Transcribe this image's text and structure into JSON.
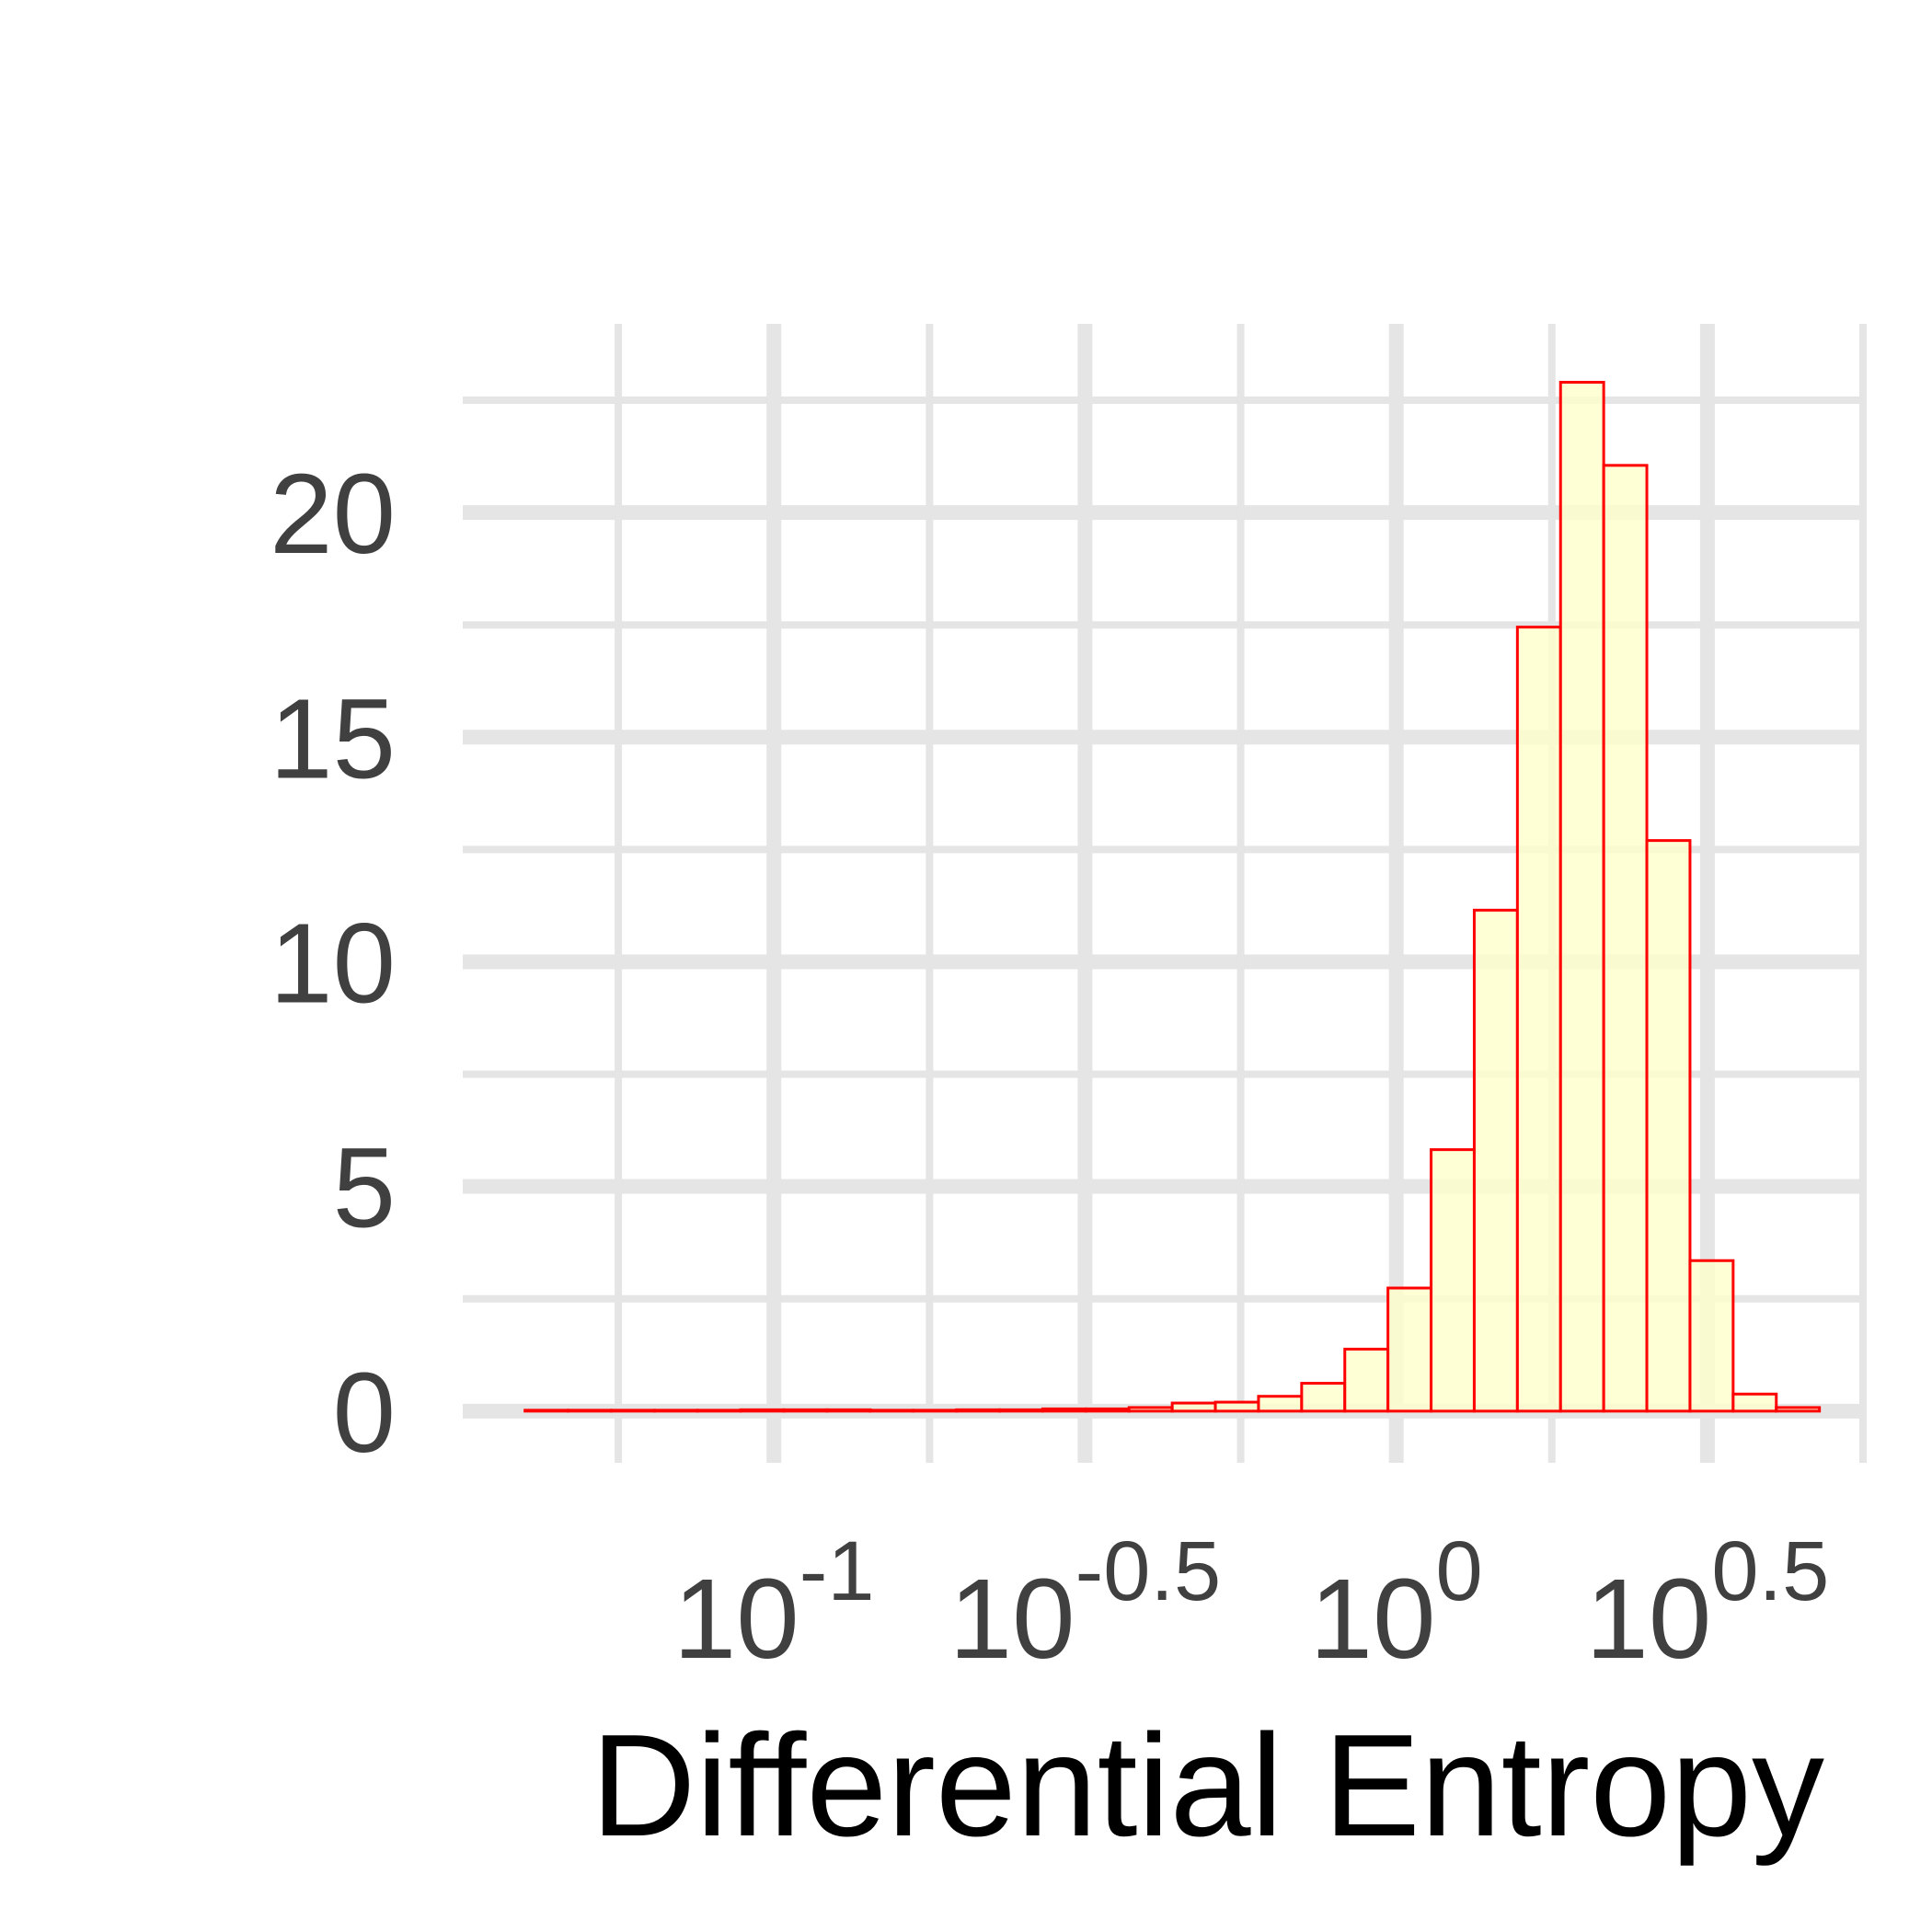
{
  "chart_data": {
    "type": "bar",
    "xlabel": "Differential Entropy",
    "ylabel": "",
    "x_scale": "log10",
    "xlim_log10": [
      -1.5,
      0.75
    ],
    "ylim": [
      -1.15,
      24.2
    ],
    "grid": true,
    "y_ticks": [
      "0",
      "5",
      "10",
      "15",
      "20"
    ],
    "x_ticks": [
      {
        "base": "10",
        "exponent": "-1"
      },
      {
        "base": "10",
        "exponent": "-0.5"
      },
      {
        "base": "10",
        "exponent": "0"
      },
      {
        "base": "10",
        "exponent": "0.5"
      }
    ],
    "bins_log10_range": [
      -1.4,
      0.68
    ],
    "bin_count": 30,
    "values": [
      0.02,
      0.02,
      0.02,
      0.02,
      0.02,
      0.03,
      0.03,
      0.03,
      0.02,
      0.02,
      0.03,
      0.03,
      0.05,
      0.05,
      0.08,
      0.18,
      0.2,
      0.33,
      0.62,
      1.38,
      2.74,
      5.82,
      11.15,
      17.45,
      22.9,
      21.05,
      12.7,
      3.35,
      0.38,
      0.08
    ],
    "colors": {
      "fill": "#ffffcc",
      "stroke": "#ff0000",
      "grid": "#e5e5e5"
    }
  }
}
